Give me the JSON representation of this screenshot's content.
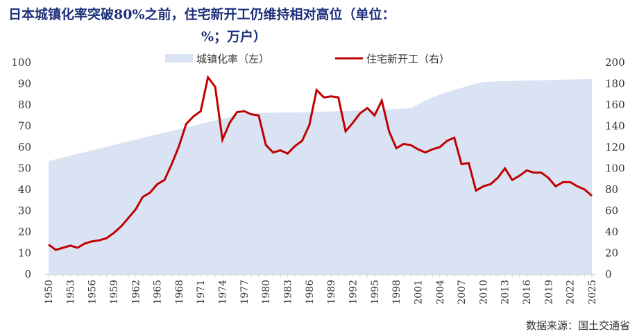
{
  "title_line1": "日本城镇化率突破80%之前，住宅新开工仍维持相对高位（单位：",
  "title_line2": "%；万户）",
  "source": "数据来源：国土交通省",
  "colors": {
    "area": "#dae3f3",
    "line": "#c00000",
    "title": "#1c2f7a"
  },
  "chart_data": {
    "type": "area+line",
    "x": [
      1950,
      1951,
      1952,
      1953,
      1954,
      1955,
      1956,
      1957,
      1958,
      1959,
      1960,
      1961,
      1962,
      1963,
      1964,
      1965,
      1966,
      1967,
      1968,
      1969,
      1970,
      1971,
      1972,
      1973,
      1974,
      1975,
      1976,
      1977,
      1978,
      1979,
      1980,
      1981,
      1982,
      1983,
      1984,
      1985,
      1986,
      1987,
      1988,
      1989,
      1990,
      1991,
      1992,
      1993,
      1994,
      1995,
      1996,
      1997,
      1998,
      1999,
      2000,
      2001,
      2002,
      2003,
      2004,
      2005,
      2006,
      2007,
      2008,
      2009,
      2010,
      2011,
      2012,
      2013,
      2014,
      2015,
      2016,
      2017,
      2018,
      2019,
      2020,
      2021,
      2022,
      2023,
      2024,
      2025
    ],
    "x_tick_labels": [
      "1950",
      "1953",
      "1956",
      "1959",
      "1962",
      "1965",
      "1968",
      "1971",
      "1974",
      "1977",
      "1980",
      "1983",
      "1986",
      "1989",
      "1992",
      "1995",
      "1998",
      "2001",
      "2004",
      "2007",
      "2010",
      "2013",
      "2016",
      "2019",
      "2022",
      "2025"
    ],
    "series": [
      {
        "name": "城镇化率（左）",
        "type": "area",
        "axis": "left",
        "values": [
          53.5,
          54.3,
          55.1,
          56.0,
          56.8,
          57.6,
          58.5,
          59.3,
          60.2,
          61.0,
          61.9,
          62.7,
          63.6,
          64.4,
          65.3,
          66.1,
          66.9,
          67.7,
          68.5,
          69.3,
          70.1,
          71.0,
          71.8,
          72.6,
          73.4,
          74.2,
          75.8,
          76.0,
          76.1,
          76.2,
          76.2,
          76.3,
          76.3,
          76.4,
          76.4,
          76.5,
          76.6,
          76.7,
          76.8,
          76.9,
          77.0,
          77.1,
          77.2,
          77.3,
          77.4,
          77.5,
          77.7,
          77.8,
          78.0,
          78.2,
          78.4,
          80.2,
          82.0,
          83.5,
          84.8,
          86.0,
          87.0,
          88.0,
          89.0,
          90.0,
          90.7,
          90.9,
          91.1,
          91.2,
          91.3,
          91.4,
          91.4,
          91.5,
          91.6,
          91.7,
          91.8,
          91.9,
          92.0,
          92.0,
          92.1,
          92.2
        ]
      },
      {
        "name": "住宅新开工（右）",
        "type": "line",
        "axis": "right",
        "values": [
          28,
          23,
          25,
          27,
          25,
          29,
          31,
          32,
          34,
          39,
          45,
          53,
          61,
          73,
          77,
          85,
          89,
          104,
          121,
          142,
          149,
          154,
          186,
          177,
          127,
          143,
          153,
          154,
          151,
          150,
          122,
          115,
          117,
          114,
          121,
          126,
          141,
          174,
          167,
          168,
          167,
          135,
          143,
          152,
          157,
          150,
          164,
          135,
          119,
          123,
          122,
          118,
          115,
          118,
          120,
          126,
          129,
          104,
          105,
          79,
          83,
          85,
          91,
          100,
          89,
          93,
          98,
          96,
          96,
          91,
          83,
          87,
          87,
          83,
          80,
          74
        ]
      }
    ],
    "left_axis": {
      "range": [
        0,
        100
      ],
      "ticks": [
        "0",
        "10",
        "20",
        "30",
        "40",
        "50",
        "60",
        "70",
        "80",
        "90",
        "100"
      ]
    },
    "right_axis": {
      "range": [
        0,
        200
      ],
      "ticks": [
        "0",
        "20",
        "40",
        "60",
        "80",
        "100",
        "120",
        "140",
        "160",
        "180",
        "200"
      ]
    },
    "legend_placement": "top-center",
    "grid": false
  }
}
